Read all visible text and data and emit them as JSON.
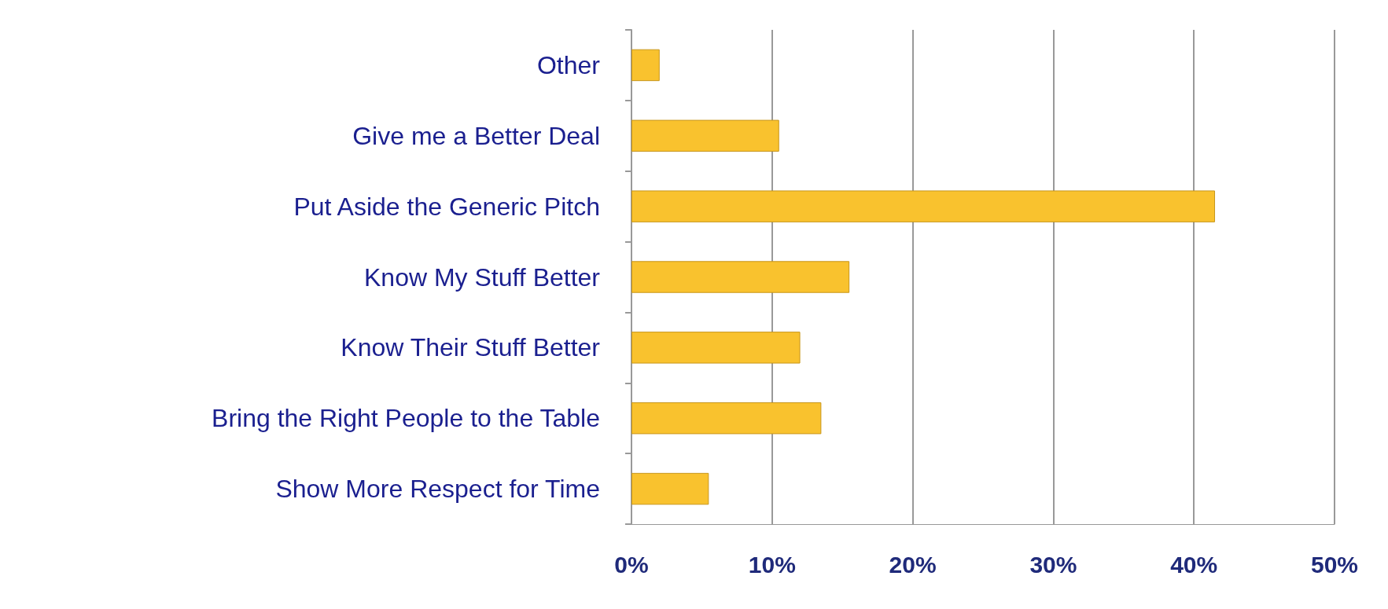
{
  "chart_data": {
    "type": "bar",
    "orientation": "horizontal",
    "categories": [
      "Other",
      "Give me a Better Deal",
      "Put Aside the Generic Pitch",
      "Know My Stuff Better",
      "Know Their Stuff Better",
      "Bring the Right People to the Table",
      "Show More Respect for Time"
    ],
    "values": [
      2,
      10.5,
      41.5,
      15.5,
      12,
      13.5,
      5.5
    ],
    "color": "#f9c22e",
    "xlim": [
      0,
      50
    ],
    "xticks": [
      {
        "value": 0,
        "label": "0%"
      },
      {
        "value": 10,
        "label": "10%"
      },
      {
        "value": 20,
        "label": "20%"
      },
      {
        "value": 30,
        "label": "30%"
      },
      {
        "value": 40,
        "label": "40%"
      },
      {
        "value": 50,
        "label": "50%"
      }
    ],
    "grid": "x"
  }
}
